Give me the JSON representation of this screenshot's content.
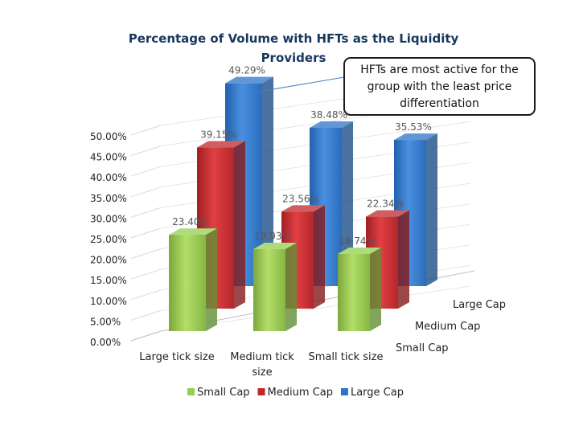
{
  "chart_data": {
    "type": "bar",
    "title": "Percentage of Volume with HFTs as the Liquidity Providers",
    "categories": [
      "Large tick size",
      "Medium tick size",
      "Small tick size"
    ],
    "series": [
      {
        "name": "Small Cap",
        "values": [
          23.4,
          19.93,
          18.74
        ],
        "labels": [
          "23.40%",
          "19.93%",
          "18.74%"
        ],
        "color": "#92d050"
      },
      {
        "name": "Medium Cap",
        "values": [
          39.15,
          23.56,
          22.34
        ],
        "labels": [
          "39.15%",
          "23.56%",
          "22.34%"
        ],
        "color": "#c0292b"
      },
      {
        "name": "Large Cap",
        "values": [
          49.29,
          38.48,
          35.53
        ],
        "labels": [
          "49.29%",
          "38.48%",
          "35.53%"
        ],
        "color": "#2e75c8"
      }
    ],
    "depth_labels": [
      "Large Cap",
      "Medium Cap",
      "Small Cap"
    ],
    "yticks": [
      "0.00%",
      "5.00%",
      "10.00%",
      "15.00%",
      "20.00%",
      "25.00%",
      "30.00%",
      "35.00%",
      "40.00%",
      "45.00%",
      "50.00%"
    ],
    "ylim": [
      0,
      50
    ],
    "legend_position": "bottom",
    "gridlines": true
  },
  "annotation": {
    "text_lines": [
      "HFTs are most active for the",
      "group with the least price",
      "differentiation"
    ]
  }
}
